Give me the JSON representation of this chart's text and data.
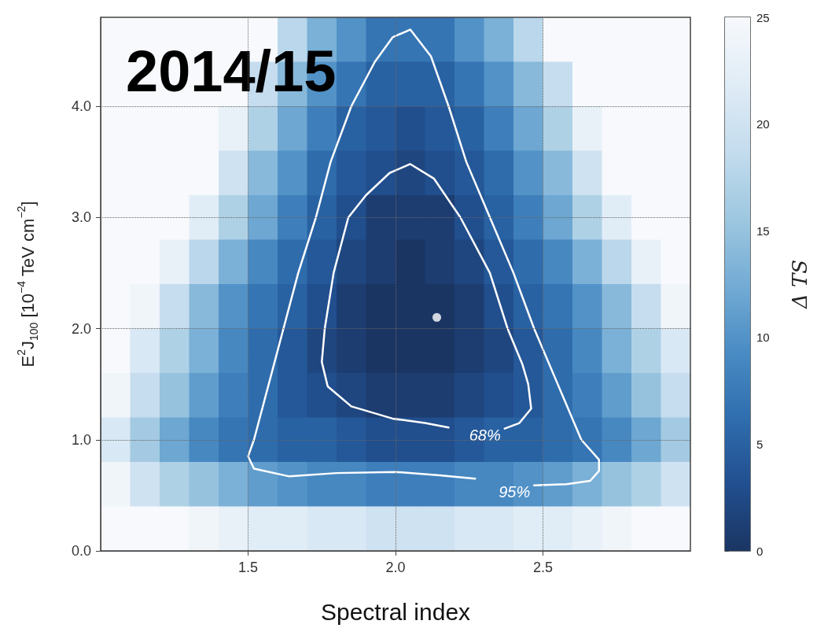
{
  "chart_data": {
    "type": "heatmap",
    "title": "2014/15",
    "xlabel": "Spectral index",
    "ylabel": "E$^{2}$J$_{100}$ [10$^{−4}$ TeV cm$^{−2}$]",
    "clabel": "Δ TS",
    "xlim": [
      1.0,
      3.0
    ],
    "ylim": [
      0,
      4.8
    ],
    "xticks": [
      1.5,
      {
        "value": 2,
        "label": "2.0"
      },
      2.5
    ],
    "yticks": [
      {
        "value": 0,
        "label": "0.0"
      },
      {
        "value": 1,
        "label": "1.0"
      },
      {
        "value": 2,
        "label": "2.0"
      },
      {
        "value": 3,
        "label": "3.0"
      },
      {
        "value": 4,
        "label": "4.0"
      }
    ],
    "grid": true,
    "clim": [
      0,
      25
    ],
    "cticks": [
      0,
      5,
      10,
      15,
      20,
      25
    ],
    "x": [
      1.05,
      1.15,
      1.25,
      1.35,
      1.45,
      1.55,
      1.65,
      1.75,
      1.85,
      1.95,
      2.05,
      2.15,
      2.25,
      2.35,
      2.45,
      2.55,
      2.65,
      2.75,
      2.85,
      2.95
    ],
    "y": [
      4.6,
      4.2,
      3.8,
      3.4,
      3.0,
      2.6,
      2.2,
      1.8,
      1.4,
      1.0,
      0.6,
      0.2
    ],
    "cells": [
      [
        25,
        25,
        25,
        25,
        25,
        25,
        18,
        13,
        10,
        7,
        7,
        7,
        10,
        13,
        18,
        25,
        25,
        25,
        25,
        25
      ],
      [
        25,
        25,
        25,
        25,
        25,
        19,
        14,
        10,
        7,
        5,
        5,
        5,
        7,
        10,
        14,
        19,
        25,
        25,
        25,
        25
      ],
      [
        25,
        25,
        25,
        25,
        23,
        17,
        12,
        8,
        5,
        4,
        3,
        4,
        5,
        8,
        12,
        17,
        23,
        25,
        25,
        25
      ],
      [
        25,
        25,
        25,
        25,
        20,
        14,
        10,
        6,
        4,
        3,
        2,
        3,
        4,
        6,
        10,
        14,
        20,
        25,
        25,
        25
      ],
      [
        25,
        25,
        25,
        22,
        17,
        12,
        8,
        5,
        3,
        1,
        1,
        1,
        3,
        5,
        8,
        12,
        17,
        22,
        25,
        25
      ],
      [
        25,
        25,
        23,
        18,
        13,
        9,
        6,
        4,
        2,
        1,
        0,
        1,
        2,
        4,
        6,
        9,
        13,
        18,
        23,
        25
      ],
      [
        25,
        24,
        19,
        14,
        10,
        7,
        5,
        3,
        1,
        0,
        0,
        0,
        1,
        3,
        5,
        7,
        10,
        14,
        19,
        24
      ],
      [
        25,
        21,
        17,
        13,
        9,
        6,
        4,
        2,
        1,
        0,
        0,
        0,
        1,
        2,
        4,
        6,
        9,
        13,
        17,
        21
      ],
      [
        24,
        19,
        15,
        11,
        8,
        6,
        4,
        3,
        2,
        1,
        1,
        1,
        2,
        3,
        4,
        6,
        8,
        11,
        15,
        19
      ],
      [
        21,
        16,
        12,
        9,
        7,
        6,
        5,
        5,
        4,
        3,
        3,
        3,
        4,
        5,
        5,
        6,
        7,
        9,
        12,
        16
      ],
      [
        24,
        20,
        17,
        15,
        13,
        11,
        10,
        9,
        9,
        8,
        8,
        8,
        9,
        9,
        10,
        11,
        13,
        15,
        17,
        20
      ],
      [
        25,
        25,
        25,
        24,
        23,
        22,
        22,
        21,
        21,
        20,
        20,
        20,
        21,
        21,
        22,
        22,
        23,
        24,
        25,
        25
      ]
    ],
    "series": [
      {
        "type": "line",
        "name": "68%",
        "color": "#ffffff",
        "x": [
          2.37,
          2.42,
          2.46,
          2.45,
          2.43,
          2.38,
          2.32,
          2.22,
          2.13,
          2.05,
          1.98,
          1.9,
          1.84,
          1.79,
          1.76,
          1.75,
          1.77,
          1.85,
          1.99,
          2.1,
          2.18
        ],
        "values": [
          1.1,
          1.15,
          1.28,
          1.5,
          1.68,
          2.0,
          2.5,
          3.0,
          3.35,
          3.48,
          3.4,
          3.2,
          3.0,
          2.5,
          2.0,
          1.7,
          1.48,
          1.3,
          1.19,
          1.15,
          1.11
        ]
      },
      {
        "type": "line",
        "name": "95%",
        "color": "#ffffff",
        "x": [
          2.47,
          2.58,
          2.66,
          2.69,
          2.69,
          2.63,
          2.55,
          2.47,
          2.4,
          2.32,
          2.24,
          2.18,
          2.12,
          2.05,
          1.99,
          1.93,
          1.85,
          1.78,
          1.73,
          1.67,
          1.62,
          1.57,
          1.52,
          1.5,
          1.52,
          1.64,
          1.8,
          2.0,
          2.15,
          2.27
        ],
        "values": [
          0.59,
          0.6,
          0.63,
          0.72,
          0.82,
          1.0,
          1.5,
          2.0,
          2.5,
          3.0,
          3.5,
          4.0,
          4.45,
          4.69,
          4.62,
          4.4,
          4.0,
          3.5,
          3.0,
          2.5,
          2.0,
          1.5,
          1.0,
          0.85,
          0.74,
          0.67,
          0.7,
          0.71,
          0.68,
          0.65
        ]
      },
      {
        "type": "scatter",
        "color": "#ffffff",
        "x": [
          2.14
        ],
        "values": [
          2.1
        ]
      }
    ]
  }
}
